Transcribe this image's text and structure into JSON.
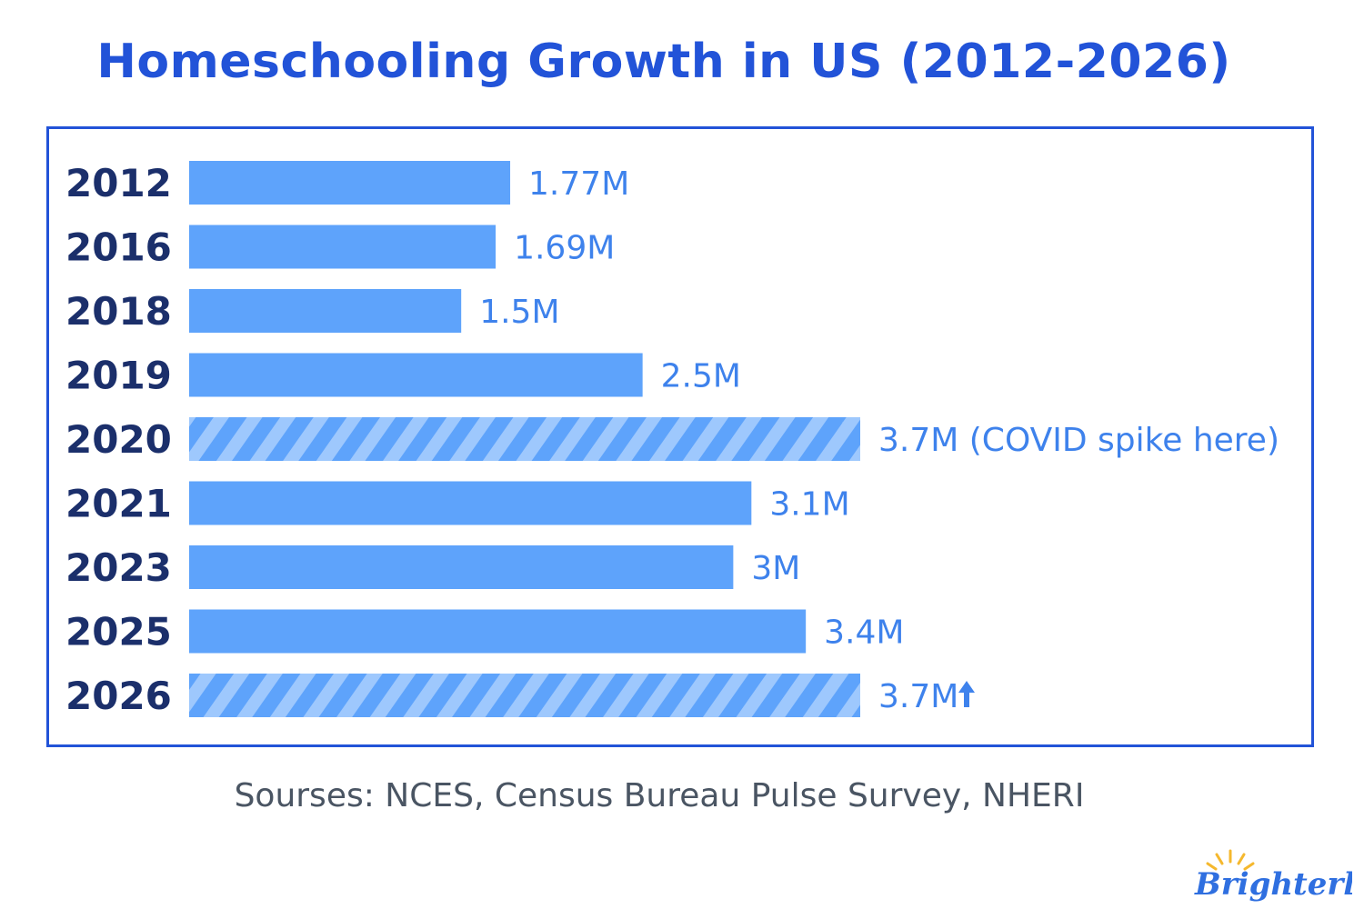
{
  "title": "Homeschooling Growth in US (2012-2026)",
  "source": "Sourses: NCES, Census Bureau Pulse Survey, NHERI",
  "brand": {
    "name": "Brighterly",
    "logo_text": "Brighterly"
  },
  "colors": {
    "title": "#2253d8",
    "bar": "#5ea3fb",
    "bar_stripe_light": "#9ec8fd",
    "year_label": "#1b2f6b",
    "value_label": "#3e82ec",
    "source": "#4a5563",
    "frame": "#2253d8",
    "logo": "#2f6fe0",
    "logo_sun": "#f5b82e"
  },
  "chart_data": {
    "type": "bar",
    "orientation": "horizontal",
    "title": "Homeschooling Growth in US (2012-2026)",
    "xlabel": "",
    "ylabel": "",
    "unit": "millions",
    "xlim": [
      0,
      3.7
    ],
    "grid": false,
    "categories": [
      "2012",
      "2016",
      "2018",
      "2019",
      "2020",
      "2021",
      "2023",
      "2025",
      "2026"
    ],
    "values": [
      1.77,
      1.69,
      1.5,
      2.5,
      3.7,
      3.1,
      3.0,
      3.4,
      3.7
    ],
    "value_labels": [
      "1.77M",
      "1.69M",
      "1.5M",
      "2.5M",
      "3.7M (COVID spike here)",
      "3.1M",
      "3M",
      "3.4M",
      "3.7M"
    ],
    "striped": [
      false,
      false,
      false,
      false,
      true,
      false,
      false,
      false,
      true
    ],
    "arrow_up": [
      false,
      false,
      false,
      false,
      false,
      false,
      false,
      false,
      true
    ]
  }
}
